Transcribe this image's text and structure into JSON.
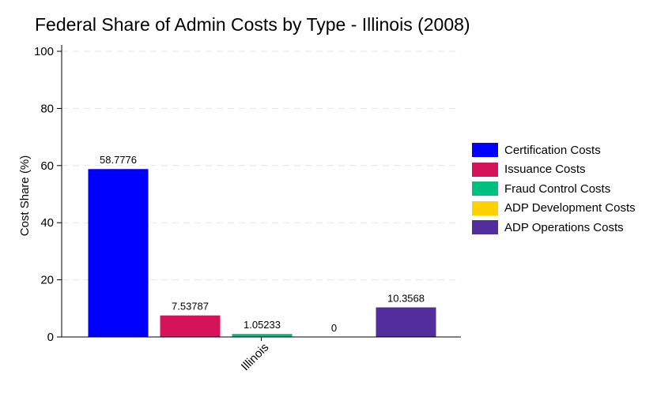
{
  "title": "Federal Share of Admin Costs by Type - Illinois (2008)",
  "chart_data": {
    "type": "bar",
    "title": "Federal Share of Admin Costs by Type - Illinois (2008)",
    "xlabel": "",
    "ylabel": "Cost Share (%)",
    "ylim": [
      0,
      100
    ],
    "yticks": [
      0,
      20,
      40,
      60,
      80,
      100
    ],
    "grid": true,
    "legend_position": "right",
    "categories": [
      "Illinois"
    ],
    "series": [
      {
        "name": "Certification Costs",
        "values": [
          58.7776
        ],
        "label": "58.7776",
        "color": "#0000ff"
      },
      {
        "name": "Issuance Costs",
        "values": [
          7.53787
        ],
        "label": "7.53787",
        "color": "#d6135a"
      },
      {
        "name": "Fraud Control Costs",
        "values": [
          1.05233
        ],
        "label": "1.05233",
        "color": "#00c07f"
      },
      {
        "name": "ADP Development Costs",
        "values": [
          0
        ],
        "label": "0",
        "color": "#ffd000"
      },
      {
        "name": "ADP Operations Costs",
        "values": [
          10.3568
        ],
        "label": "10.3568",
        "color": "#522d9c"
      }
    ]
  }
}
